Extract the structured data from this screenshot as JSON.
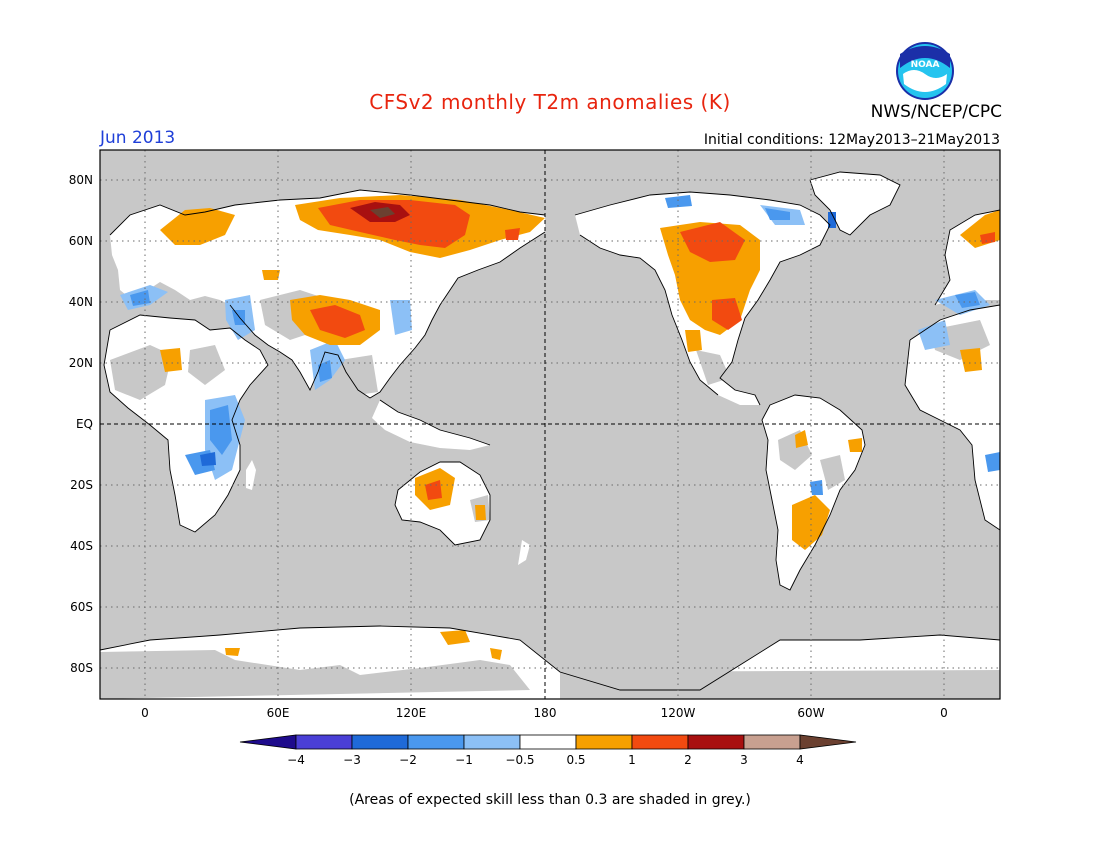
{
  "header": {
    "title": "CFSv2 monthly T2m anomalies (K)",
    "agency": "NWS/NCEP/CPC",
    "logo_text": "NOAA",
    "period": "Jun 2013",
    "initial_conditions": "Initial conditions: 12May2013–21May2013"
  },
  "map": {
    "lat_labels": [
      "80N",
      "60N",
      "40N",
      "20N",
      "EQ",
      "20S",
      "40S",
      "60S",
      "80S"
    ],
    "lon_labels": [
      "0",
      "60E",
      "120E",
      "180",
      "120W",
      "60W",
      "0"
    ],
    "skill_mask_color": "#c8c8c8"
  },
  "colorbar": {
    "tick_labels": [
      "−4",
      "−3",
      "−2",
      "−1",
      "−0.5",
      "0.5",
      "1",
      "2",
      "3",
      "4"
    ],
    "colors": [
      "#1e0b8c",
      "#4a3fd6",
      "#1f6ad8",
      "#4a98ee",
      "#8cc0f6",
      "#ffffff",
      "#f7a000",
      "#f24a10",
      "#a81010",
      "#c8a090",
      "#6b4030"
    ]
  },
  "footnote": "(Areas of expected skill less than 0.3 are shaded in grey.)"
}
